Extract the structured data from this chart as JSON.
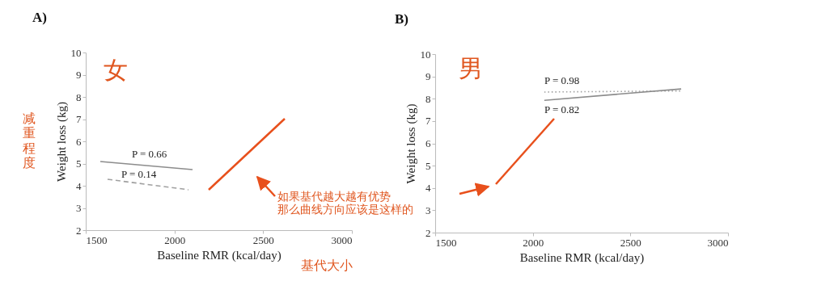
{
  "chart_data": [
    {
      "type": "line",
      "title": "A)",
      "xlabel": "Baseline RMR (kcal/day)",
      "ylabel": "Weight loss (kg)",
      "xlim": [
        1500,
        3000
      ],
      "xticks": [
        1500,
        2000,
        2500,
        3000
      ],
      "ylim": [
        2,
        10
      ],
      "yticks": [
        2,
        3,
        4,
        5,
        6,
        7,
        8,
        9,
        10
      ],
      "grid": false,
      "marker": "none",
      "series": [
        {
          "color": "#8c8c8c",
          "line_style": "solid",
          "x": [
            1582,
            2102
          ],
          "values": [
            5.09,
            4.73
          ]
        },
        {
          "color": "#a0a0a0",
          "line_style": "dashed",
          "x": [
            1623,
            2079
          ],
          "values": [
            4.29,
            3.82
          ]
        }
      ],
      "annotations": [
        "P = 0.66",
        "P = 0.14",
        "女",
        "减重程度",
        "基代大小",
        "如果基代越大越有优势那么曲线方向应该是这样的"
      ]
    },
    {
      "type": "line",
      "title": "B)",
      "xlabel": "Baseline RMR (kcal/day)",
      "ylabel": "Weight loss (kg)",
      "xlim": [
        1500,
        3000
      ],
      "xticks": [
        1500,
        2000,
        2500,
        3000
      ],
      "ylim": [
        2,
        10
      ],
      "yticks": [
        2,
        3,
        4,
        5,
        6,
        7,
        8,
        9,
        10
      ],
      "grid": false,
      "marker": "none",
      "series": [
        {
          "color": "#a0a0a0",
          "line_style": "dotted",
          "x": [
            2059,
            2760
          ],
          "values": [
            8.3,
            8.35
          ]
        },
        {
          "color": "#8c8c8c",
          "line_style": "solid",
          "x": [
            2059,
            2760
          ],
          "values": [
            7.93,
            8.44
          ]
        }
      ],
      "annotations": [
        "P = 0.98",
        "P = 0.82",
        "男"
      ]
    }
  ]
}
